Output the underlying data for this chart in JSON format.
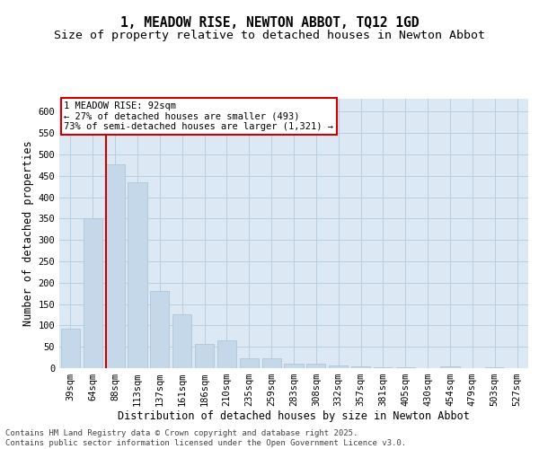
{
  "title_line1": "1, MEADOW RISE, NEWTON ABBOT, TQ12 1GD",
  "title_line2": "Size of property relative to detached houses in Newton Abbot",
  "xlabel": "Distribution of detached houses by size in Newton Abbot",
  "ylabel": "Number of detached properties",
  "bar_color": "#c5d8ea",
  "bar_edge_color": "#aec6d8",
  "grid_color": "#b8cfe0",
  "plot_bg_color": "#dce9f5",
  "fig_bg_color": "#ffffff",
  "vline_color": "#cc0000",
  "vline_x_index": 2,
  "annotation_text": "1 MEADOW RISE: 92sqm\n← 27% of detached houses are smaller (493)\n73% of semi-detached houses are larger (1,321) →",
  "annotation_box_color": "#ffffff",
  "annotation_edge_color": "#cc0000",
  "categories": [
    "39sqm",
    "64sqm",
    "88sqm",
    "113sqm",
    "137sqm",
    "161sqm",
    "186sqm",
    "210sqm",
    "235sqm",
    "259sqm",
    "283sqm",
    "308sqm",
    "332sqm",
    "357sqm",
    "381sqm",
    "405sqm",
    "430sqm",
    "454sqm",
    "479sqm",
    "503sqm",
    "527sqm"
  ],
  "values": [
    93,
    350,
    477,
    435,
    181,
    125,
    57,
    65,
    23,
    23,
    11,
    11,
    7,
    4,
    2,
    2,
    0,
    4,
    0,
    3,
    0
  ],
  "ylim": [
    0,
    630
  ],
  "yticks": [
    0,
    50,
    100,
    150,
    200,
    250,
    300,
    350,
    400,
    450,
    500,
    550,
    600
  ],
  "footer_text": "Contains HM Land Registry data © Crown copyright and database right 2025.\nContains public sector information licensed under the Open Government Licence v3.0.",
  "title_fontsize": 10.5,
  "subtitle_fontsize": 9.5,
  "axis_label_fontsize": 8.5,
  "tick_fontsize": 7.5,
  "footer_fontsize": 6.5,
  "annot_fontsize": 7.5
}
